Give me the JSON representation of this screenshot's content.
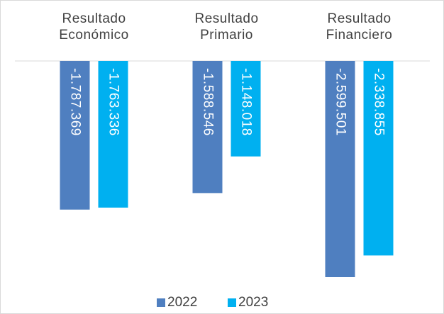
{
  "chart_data": {
    "type": "bar",
    "categories": [
      "Resultado Económico",
      "Resultado Primario",
      "Resultado Financiero"
    ],
    "series": [
      {
        "name": "2022",
        "color": "#4f7fc0",
        "values": [
          -1787369,
          -1588546,
          -2599501
        ],
        "value_labels": [
          "-1.787.369",
          "-1.588.546",
          "-2.599.501"
        ]
      },
      {
        "name": "2023",
        "color": "#00b0f0",
        "values": [
          -1763336,
          -1148018,
          -2338855
        ],
        "value_labels": [
          "-1.763.336",
          "-1.148.018",
          "-2.338.855"
        ]
      }
    ],
    "legend": "bottom"
  }
}
